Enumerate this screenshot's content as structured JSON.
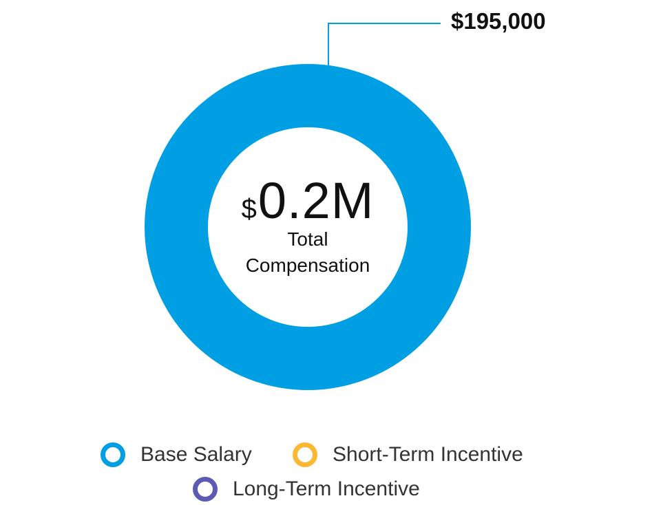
{
  "chart_data": {
    "type": "pie",
    "categories": [
      "Base Salary",
      "Short-Term Incentive",
      "Long-Term Incentive"
    ],
    "values": [
      195000,
      0,
      0
    ],
    "colors": [
      "#009FE3",
      "#FBB832",
      "#5B5BB5"
    ],
    "center_currency": "$",
    "center_value": "0.2M",
    "center_label_line1": "Total",
    "center_label_line2": "Compensation",
    "callout_label": "$195,000",
    "legend_placement": "bottom"
  },
  "legend": [
    {
      "label": "Base Salary",
      "color": "#009FE3"
    },
    {
      "label": "Short-Term Incentive",
      "color": "#FBB832"
    },
    {
      "label": "Long-Term Incentive",
      "color": "#5B5BB5"
    }
  ]
}
